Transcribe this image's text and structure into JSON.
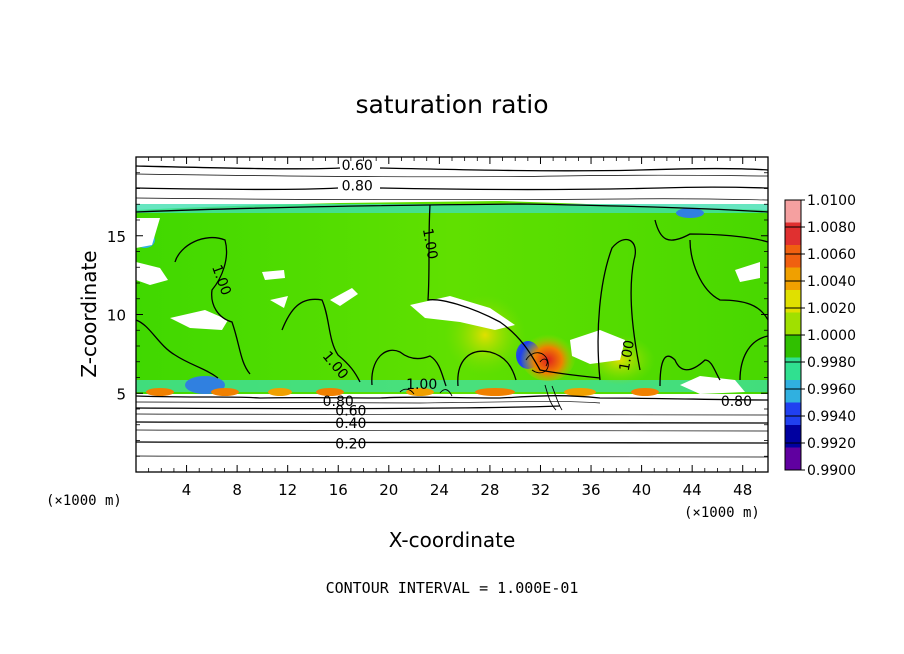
{
  "chart_data": {
    "type": "heatmap",
    "title": "saturation ratio",
    "xlabel": "X-coordinate",
    "ylabel": "Z-coordinate",
    "x_unit": "(×1000 m)",
    "z_unit": "(×1000 m)",
    "xlim": [
      0,
      50
    ],
    "ylim": [
      0,
      20
    ],
    "x_ticks": [
      4,
      8,
      12,
      16,
      20,
      24,
      28,
      32,
      36,
      40,
      44,
      48
    ],
    "y_ticks": [
      5,
      10,
      15
    ],
    "footer": "CONTOUR INTERVAL = 1.000E-01",
    "colorbar": {
      "levels": [
        "1.0100",
        "1.0080",
        "1.0060",
        "1.0040",
        "1.0020",
        "1.0000",
        "0.9980",
        "0.9960",
        "0.9940",
        "0.9920",
        "0.9900"
      ],
      "colors": [
        "#f5a0a0",
        "#e03030",
        "#f06010",
        "#f0a000",
        "#e0e000",
        "#a0e000",
        "#30c000",
        "#30e090",
        "#30b0e0",
        "#2040f0",
        "#0000a0",
        "#6000a0"
      ]
    },
    "contour_labels": [
      {
        "text": "0.60",
        "x": 17.5,
        "z": 19.5
      },
      {
        "text": "0.80",
        "x": 17.5,
        "z": 18.2
      },
      {
        "text": "1.00",
        "x": 23.3,
        "z": 14.5,
        "rotate": 80
      },
      {
        "text": "1.00",
        "x": 6.8,
        "z": 12.2,
        "rotate": 70
      },
      {
        "text": "1.00",
        "x": 15.8,
        "z": 6.8,
        "rotate": 50
      },
      {
        "text": "1.00",
        "x": 22.6,
        "z": 5.6
      },
      {
        "text": "1.00",
        "x": 38.8,
        "z": 7.4,
        "rotate": -80
      },
      {
        "text": "0.80",
        "x": 16.0,
        "z": 4.5
      },
      {
        "text": "0.80",
        "x": 47.5,
        "z": 4.5
      },
      {
        "text": "0.60",
        "x": 17.0,
        "z": 3.9
      },
      {
        "text": "0.40",
        "x": 17.0,
        "z": 3.1
      },
      {
        "text": "0.20",
        "x": 17.0,
        "z": 1.8
      }
    ]
  }
}
